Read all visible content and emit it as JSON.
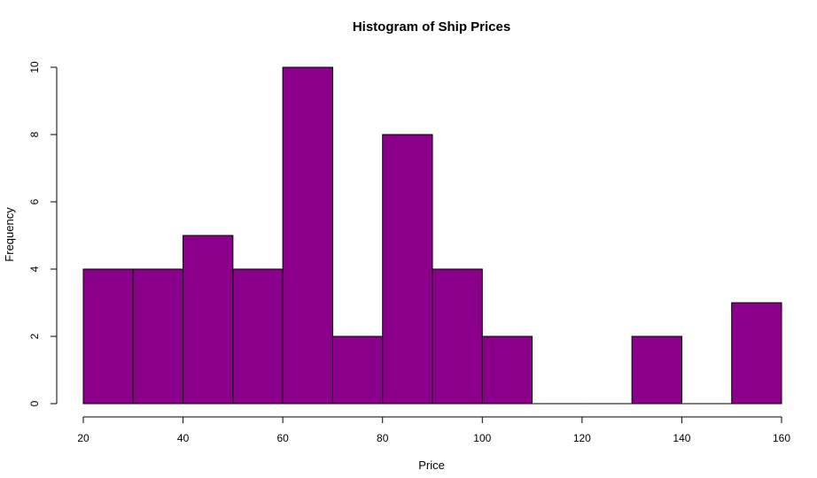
{
  "chart_data": {
    "type": "bar",
    "title": "Histogram of Ship Prices",
    "xlabel": "Price",
    "ylabel": "Frequency",
    "bin_edges": [
      20,
      30,
      40,
      50,
      60,
      70,
      80,
      90,
      100,
      110,
      120,
      130,
      140,
      150,
      160
    ],
    "values": [
      4,
      4,
      5,
      4,
      10,
      2,
      8,
      4,
      2,
      0,
      0,
      2,
      0,
      3
    ],
    "xlim": [
      20,
      160
    ],
    "ylim": [
      0,
      10
    ],
    "x_ticks": [
      20,
      40,
      60,
      80,
      100,
      120,
      140,
      160
    ],
    "y_ticks": [
      0,
      2,
      4,
      6,
      8,
      10
    ],
    "bar_color": "#8B008B",
    "edge_color": "#000000",
    "grid": false,
    "legend": "none"
  }
}
